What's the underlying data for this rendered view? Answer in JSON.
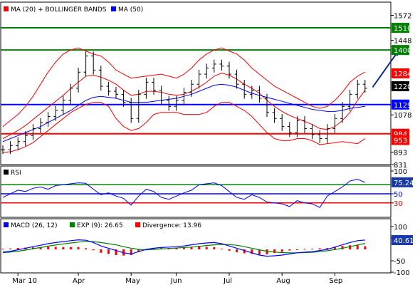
{
  "chart_data": {
    "type": "line",
    "x_axis": {
      "ticks": [
        "Mar 10",
        "Apr",
        "May",
        "Jun",
        "Jul",
        "Aug",
        "Sep"
      ]
    },
    "price_panel": {
      "legend": [
        {
          "label": "MA (20) + BOLLINGER BANDS",
          "color": "#ff0000"
        },
        {
          "label": "MA (50)",
          "color": "#0000ff"
        }
      ],
      "y_ticks": [
        1572,
        1448,
        1078,
        893,
        831
      ],
      "ylim": [
        831,
        1634
      ],
      "levels": [
        {
          "label": "1510",
          "value": 1510,
          "color": "#008000"
        },
        {
          "label": "1400",
          "value": 1400,
          "color": "#008000"
        },
        {
          "label": "1284",
          "value": 1284,
          "color": "#ff0000",
          "kind": "marker"
        },
        {
          "label": "1220",
          "value": 1220,
          "color": "#000000",
          "kind": "marker"
        },
        {
          "label": "1129",
          "value": 1129,
          "color": "#0000ff"
        },
        {
          "label": "984",
          "value": 984,
          "color": "#ff0000"
        },
        {
          "label": "953",
          "value": 953,
          "color": "#ff0000",
          "kind": "marker"
        }
      ],
      "close": [
        905,
        925,
        945,
        975,
        1010,
        1040,
        1070,
        1100,
        1150,
        1210,
        1290,
        1370,
        1300,
        1220,
        1195,
        1180,
        1140,
        1060,
        1180,
        1240,
        1200,
        1150,
        1120,
        1150,
        1190,
        1230,
        1280,
        1310,
        1330,
        1320,
        1280,
        1230,
        1180,
        1200,
        1160,
        1090,
        1060,
        1020,
        990,
        1050,
        1010,
        980,
        960,
        1010,
        1060,
        1120,
        1180,
        1230,
        1210
      ],
      "ma20": [
        960,
        980,
        1000,
        1025,
        1055,
        1085,
        1115,
        1145,
        1175,
        1210,
        1240,
        1270,
        1275,
        1265,
        1250,
        1230,
        1200,
        1175,
        1180,
        1195,
        1195,
        1190,
        1180,
        1175,
        1180,
        1195,
        1215,
        1240,
        1270,
        1285,
        1275,
        1255,
        1230,
        1210,
        1185,
        1150,
        1120,
        1095,
        1075,
        1060,
        1045,
        1030,
        1010,
        1005,
        1020,
        1050,
        1090,
        1150,
        1200
      ],
      "bb_upper": [
        1020,
        1050,
        1080,
        1120,
        1170,
        1230,
        1290,
        1340,
        1380,
        1400,
        1410,
        1395,
        1380,
        1370,
        1340,
        1300,
        1280,
        1260,
        1265,
        1270,
        1275,
        1280,
        1270,
        1260,
        1280,
        1310,
        1350,
        1380,
        1400,
        1410,
        1395,
        1380,
        1350,
        1310,
        1280,
        1250,
        1220,
        1200,
        1180,
        1160,
        1140,
        1120,
        1110,
        1120,
        1150,
        1190,
        1240,
        1270,
        1290
      ],
      "bb_lower": [
        890,
        895,
        905,
        920,
        940,
        970,
        1000,
        1030,
        1060,
        1090,
        1110,
        1130,
        1140,
        1140,
        1120,
        1060,
        1020,
        1000,
        1010,
        1040,
        1080,
        1090,
        1090,
        1090,
        1080,
        1080,
        1080,
        1090,
        1120,
        1140,
        1140,
        1120,
        1100,
        1070,
        1030,
        990,
        960,
        950,
        950,
        960,
        960,
        950,
        930,
        935,
        940,
        945,
        940,
        935,
        960
      ],
      "ma50": [
        945,
        960,
        975,
        990,
        1005,
        1020,
        1040,
        1060,
        1080,
        1100,
        1125,
        1150,
        1165,
        1170,
        1165,
        1160,
        1150,
        1140,
        1140,
        1140,
        1145,
        1150,
        1155,
        1160,
        1170,
        1180,
        1195,
        1210,
        1225,
        1230,
        1225,
        1215,
        1200,
        1185,
        1175,
        1165,
        1155,
        1145,
        1135,
        1125,
        1115,
        1105,
        1100,
        1095,
        1095,
        1100,
        1110,
        1115,
        1120
      ],
      "projection": [
        {
          "index": 49,
          "value": 1215
        },
        {
          "index": 52.5,
          "value": 1400
        }
      ]
    },
    "rsi_panel": {
      "legend": "RSI",
      "y_ticks": [
        100,
        50,
        30
      ],
      "ylim": [
        0,
        100
      ],
      "levels": [
        {
          "value": 70,
          "color": "#008000"
        },
        {
          "value": 50,
          "color": "#0000ff"
        },
        {
          "value": 30,
          "color": "#ff0000"
        }
      ],
      "current": {
        "label": "75.24",
        "value": 75.24
      },
      "values": [
        42,
        50,
        58,
        55,
        62,
        65,
        60,
        68,
        70,
        72,
        74,
        73,
        60,
        48,
        52,
        45,
        40,
        25,
        45,
        60,
        55,
        42,
        38,
        45,
        52,
        58,
        70,
        72,
        74,
        68,
        55,
        42,
        38,
        48,
        42,
        32,
        30,
        28,
        22,
        35,
        30,
        28,
        20,
        45,
        55,
        65,
        78,
        82,
        75
      ]
    },
    "macd_panel": {
      "legend": [
        {
          "label": "MACD (26, 12)",
          "color": "#0000ff"
        },
        {
          "label": "EXP (9): 26.65",
          "color": "#008000"
        },
        {
          "label": "Divergence: 13.96",
          "color": "#ff0000"
        }
      ],
      "y_ticks": [
        100,
        50,
        -50,
        -100
      ],
      "ylim": [
        -100,
        100
      ],
      "current": {
        "label": "40.61",
        "value": 40.61
      },
      "macd": [
        -12,
        -8,
        -2,
        5,
        12,
        18,
        25,
        30,
        34,
        38,
        42,
        40,
        30,
        15,
        5,
        -5,
        -15,
        -20,
        -10,
        0,
        5,
        8,
        10,
        12,
        15,
        20,
        25,
        28,
        30,
        25,
        15,
        5,
        -5,
        -15,
        -25,
        -30,
        -28,
        -25,
        -20,
        -15,
        -12,
        -10,
        -5,
        0,
        10,
        20,
        30,
        38,
        41
      ],
      "signal": [
        -15,
        -12,
        -8,
        -3,
        3,
        8,
        14,
        19,
        24,
        28,
        32,
        35,
        34,
        30,
        25,
        20,
        12,
        5,
        0,
        -2,
        0,
        2,
        4,
        6,
        8,
        10,
        13,
        17,
        20,
        22,
        21,
        18,
        12,
        5,
        -2,
        -8,
        -12,
        -14,
        -15,
        -15,
        -14,
        -13,
        -10,
        -6,
        -1,
        5,
        12,
        19,
        26.65
      ],
      "divergence": [
        3,
        4,
        6,
        8,
        9,
        10,
        11,
        11,
        10,
        10,
        10,
        5,
        -4,
        -15,
        -20,
        -25,
        -27,
        -25,
        -10,
        2,
        5,
        6,
        6,
        6,
        7,
        10,
        12,
        11,
        10,
        3,
        -6,
        -13,
        -17,
        -20,
        -23,
        -22,
        -16,
        -11,
        -5,
        0,
        2,
        3,
        5,
        6,
        11,
        15,
        18,
        19,
        13.96
      ]
    }
  }
}
